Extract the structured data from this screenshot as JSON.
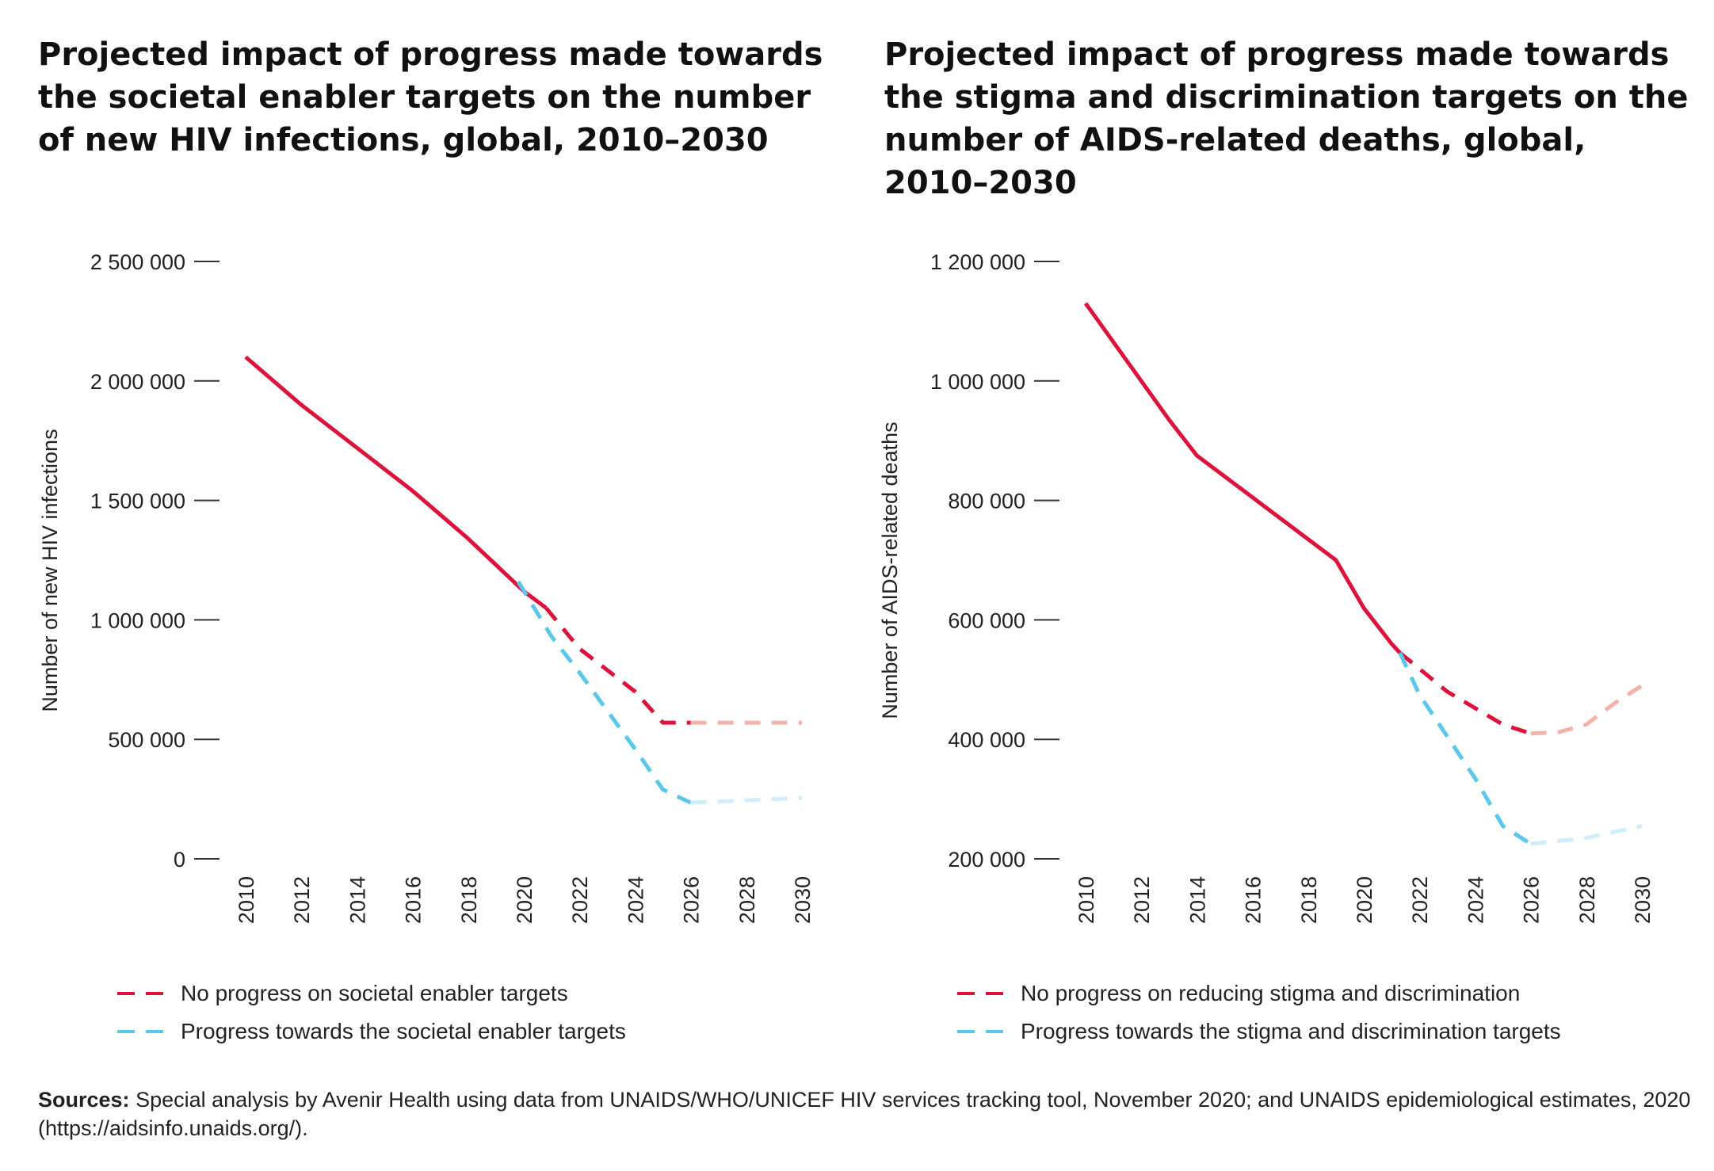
{
  "colors": {
    "no_progress": "#dc143c",
    "no_progress_light": "#f4b3a8",
    "progress": "#5bc8eb",
    "progress_light": "#cfeefa",
    "axis": "#333333"
  },
  "sources": {
    "label": "Sources:",
    "text": "Special analysis by Avenir Health using data from UNAIDS/WHO/UNICEF HIV services tracking tool, November 2020; and UNAIDS epidemiological estimates, 2020 (https://aidsinfo.unaids.org/)."
  },
  "chart_data": [
    {
      "type": "line",
      "title": "Projected impact of progress made towards the societal enabler targets on the number of new HIV infections, global, 2010–2030",
      "xlabel": "",
      "ylabel": "Number of new HIV infections",
      "xlim": [
        2010,
        2030
      ],
      "ylim": [
        0,
        2500000
      ],
      "x_ticks": [
        "2010",
        "2012",
        "2014",
        "2016",
        "2018",
        "2020",
        "2022",
        "2024",
        "2026",
        "2028",
        "2030"
      ],
      "y_ticks": [
        {
          "value": 0,
          "label": "0"
        },
        {
          "value": 500000,
          "label": "500 000"
        },
        {
          "value": 1000000,
          "label": "1 000 000"
        },
        {
          "value": 1500000,
          "label": "1 500 000"
        },
        {
          "value": 2000000,
          "label": "2 000 000"
        },
        {
          "value": 2500000,
          "label": "2 500 000"
        }
      ],
      "grid": false,
      "legend_position": "bottom",
      "series": [
        {
          "name": "",
          "style": "solid",
          "color": "#dc143c",
          "x": [
            2010,
            2012,
            2014,
            2016,
            2017,
            2018,
            2019,
            2020,
            2020.8
          ],
          "y": [
            2100000,
            1900000,
            1720000,
            1540000,
            1440000,
            1340000,
            1230000,
            1120000,
            1050000
          ]
        },
        {
          "name": "No progress on societal enabler targets",
          "style": "dashed",
          "color": "#dc143c",
          "x": [
            2020.8,
            2022,
            2024,
            2025,
            2026
          ],
          "y": [
            1050000,
            880000,
            700000,
            570000,
            570000
          ]
        },
        {
          "name": "",
          "style": "dashed",
          "color": "#f4b3a8",
          "x": [
            2026,
            2028,
            2030
          ],
          "y": [
            570000,
            570000,
            570000
          ]
        },
        {
          "name": "Progress towards the societal enabler targets",
          "style": "dashed",
          "color": "#5bc8eb",
          "x": [
            2019.8,
            2021,
            2022,
            2023,
            2024,
            2025,
            2026
          ],
          "y": [
            1160000,
            930000,
            780000,
            620000,
            460000,
            290000,
            235000
          ]
        },
        {
          "name": "",
          "style": "dashed",
          "color": "#cfeefa",
          "x": [
            2026,
            2028,
            2030
          ],
          "y": [
            235000,
            245000,
            255000
          ]
        }
      ]
    },
    {
      "type": "line",
      "title": "Projected impact of progress made towards the stigma and discrimination targets on the number of AIDS-related deaths, global, 2010–2030",
      "xlabel": "",
      "ylabel": "Number of AIDS-related deaths",
      "xlim": [
        2010,
        2030
      ],
      "ylim": [
        200000,
        1200000
      ],
      "x_ticks": [
        "2010",
        "2012",
        "2014",
        "2016",
        "2018",
        "2020",
        "2022",
        "2024",
        "2026",
        "2028",
        "2030"
      ],
      "y_ticks": [
        {
          "value": 200000,
          "label": "200 000"
        },
        {
          "value": 400000,
          "label": "400 000"
        },
        {
          "value": 600000,
          "label": "600 000"
        },
        {
          "value": 800000,
          "label": "800 000"
        },
        {
          "value": 1000000,
          "label": "1 000 000"
        },
        {
          "value": 1200000,
          "label": "1 200 000"
        }
      ],
      "grid": false,
      "legend_position": "bottom",
      "series": [
        {
          "name": "",
          "style": "solid",
          "color": "#dc143c",
          "x": [
            2010,
            2012,
            2013,
            2014,
            2016,
            2018,
            2019,
            2020,
            2021,
            2021.3
          ],
          "y": [
            1130000,
            1000000,
            935000,
            875000,
            805000,
            735000,
            700000,
            620000,
            560000,
            545000
          ]
        },
        {
          "name": "No progress on reducing stigma and discrimination",
          "style": "dashed",
          "color": "#dc143c",
          "x": [
            2021.3,
            2023,
            2025,
            2026
          ],
          "y": [
            545000,
            480000,
            425000,
            410000
          ]
        },
        {
          "name": "",
          "style": "dashed",
          "color": "#f4b3a8",
          "x": [
            2026,
            2027,
            2028,
            2029,
            2030
          ],
          "y": [
            410000,
            412000,
            425000,
            460000,
            490000
          ]
        },
        {
          "name": "Progress towards the stigma and discrimination targets",
          "style": "dashed",
          "color": "#5bc8eb",
          "x": [
            2021.3,
            2022,
            2023,
            2024,
            2025,
            2026
          ],
          "y": [
            545000,
            475000,
            405000,
            335000,
            255000,
            225000
          ]
        },
        {
          "name": "",
          "style": "dashed",
          "color": "#cfeefa",
          "x": [
            2026,
            2028,
            2030
          ],
          "y": [
            225000,
            235000,
            255000
          ]
        }
      ]
    }
  ]
}
